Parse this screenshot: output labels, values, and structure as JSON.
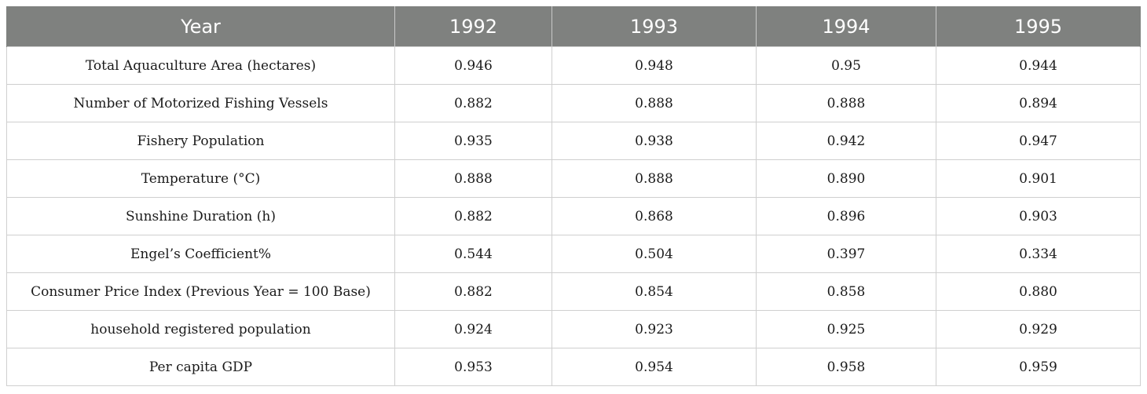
{
  "chart_data": {
    "type": "table",
    "columns": [
      "Year",
      "1992",
      "1993",
      "1994",
      "1995"
    ],
    "rows": [
      {
        "label": "Total Aquaculture Area (hectares)",
        "values": [
          "0.946",
          "0.948",
          "0.95",
          "0.944"
        ]
      },
      {
        "label": "Number of Motorized Fishing Vessels",
        "values": [
          "0.882",
          "0.888",
          "0.888",
          "0.894"
        ]
      },
      {
        "label": "Fishery Population",
        "values": [
          "0.935",
          "0.938",
          "0.942",
          "0.947"
        ]
      },
      {
        "label": "Temperature (°C)",
        "values": [
          "0.888",
          "0.888",
          "0.890",
          "0.901"
        ]
      },
      {
        "label": "Sunshine Duration (h)",
        "values": [
          "0.882",
          "0.868",
          "0.896",
          "0.903"
        ]
      },
      {
        "label": "Engel’s Coefficient%",
        "values": [
          "0.544",
          "0.504",
          "0.397",
          "0.334"
        ]
      },
      {
        "label": "Consumer Price Index (Previous Year = 100 Base)",
        "values": [
          "0.882",
          "0.854",
          "0.858",
          "0.880"
        ]
      },
      {
        "label": "household registered population",
        "values": [
          "0.924",
          "0.923",
          "0.925",
          "0.929"
        ]
      },
      {
        "label": "Per capita GDP",
        "values": [
          "0.953",
          "0.954",
          "0.958",
          "0.959"
        ]
      }
    ],
    "colors": {
      "header_bg": "#7f817f",
      "header_text": "#ffffff",
      "grid": "#cfcfcf"
    }
  }
}
